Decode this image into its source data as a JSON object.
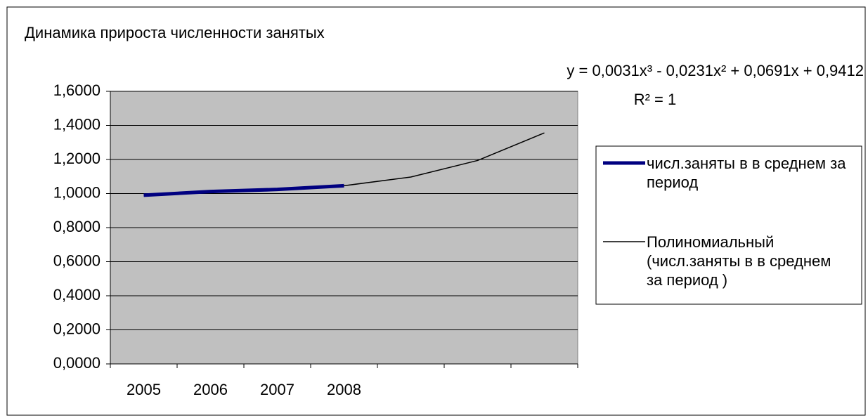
{
  "chart_data": {
    "type": "line",
    "title": "Динамика прироста численности занятых",
    "equation": "y = 0,0031x³ - 0,0231x² + 0,0691x + 0,9412",
    "r_squared": "R² = 1",
    "categories": [
      "2005",
      "2006",
      "2007",
      "2008",
      null,
      null,
      null
    ],
    "series": [
      {
        "name": "числ.заняты в в среднем за период",
        "color": "#000080",
        "values": [
          0.99,
          1.012,
          1.024,
          1.046,
          null,
          null,
          null
        ]
      },
      {
        "name": "Полиномиальный (числ.заняты в в среднем за период )",
        "color": "#000000",
        "values": [
          0.99,
          1.012,
          1.024,
          1.046,
          1.097,
          1.194,
          1.356
        ]
      }
    ],
    "ylim": [
      0,
      1.6
    ],
    "yticks": [
      {
        "value": 0,
        "label": "0,0000"
      },
      {
        "value": 0.2,
        "label": "0,2000"
      },
      {
        "value": 0.4,
        "label": "0,4000"
      },
      {
        "value": 0.6,
        "label": "0,6000"
      },
      {
        "value": 0.8,
        "label": "0,8000"
      },
      {
        "value": 1,
        "label": "1,0000"
      },
      {
        "value": 1.2,
        "label": "1,2000"
      },
      {
        "value": 1.4,
        "label": "1,4000"
      },
      {
        "value": 1.6,
        "label": "1,6000"
      }
    ],
    "grid": true,
    "legend": "right"
  }
}
